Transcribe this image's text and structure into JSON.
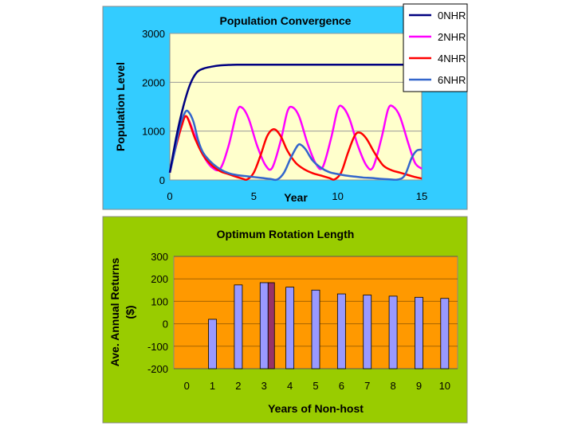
{
  "chart_data": [
    {
      "type": "line",
      "title": "Population Convergence",
      "xlabel": "Year",
      "ylabel": "Population Level",
      "xlim": [
        0,
        15
      ],
      "ylim": [
        0,
        3000
      ],
      "x_ticks": [
        "0",
        "5",
        "10",
        "15"
      ],
      "y_ticks": [
        "0",
        "1000",
        "2000",
        "3000"
      ],
      "legend_position": "top-right",
      "colors": {
        "panel_bg": "#33CCFF",
        "plot_bg": "#FFFFCC"
      },
      "series": [
        {
          "name": "0NHR",
          "color": "#000080",
          "points": [
            [
              0,
              150
            ],
            [
              0.4,
              900
            ],
            [
              0.8,
              1500
            ],
            [
              1.2,
              1950
            ],
            [
              1.6,
              2200
            ],
            [
              2,
              2280
            ],
            [
              2.5,
              2320
            ],
            [
              3,
              2345
            ],
            [
              3.5,
              2355
            ],
            [
              4,
              2360
            ],
            [
              6,
              2360
            ],
            [
              8,
              2360
            ],
            [
              10,
              2360
            ],
            [
              12,
              2360
            ],
            [
              14,
              2360
            ],
            [
              15,
              2360
            ]
          ]
        },
        {
          "name": "2NHR",
          "color": "#FF00FF",
          "points": [
            [
              0,
              150
            ],
            [
              0.3,
              600
            ],
            [
              0.7,
              1100
            ],
            [
              1,
              1300
            ],
            [
              1.5,
              900
            ],
            [
              2,
              500
            ],
            [
              2.5,
              260
            ],
            [
              3,
              230
            ],
            [
              3.5,
              700
            ],
            [
              4,
              1400
            ],
            [
              4.3,
              1480
            ],
            [
              4.7,
              1250
            ],
            [
              5.2,
              700
            ],
            [
              5.7,
              300
            ],
            [
              6.1,
              250
            ],
            [
              6.6,
              800
            ],
            [
              7,
              1400
            ],
            [
              7.3,
              1490
            ],
            [
              7.7,
              1300
            ],
            [
              8.2,
              750
            ],
            [
              8.7,
              330
            ],
            [
              9.1,
              260
            ],
            [
              9.6,
              850
            ],
            [
              10,
              1450
            ],
            [
              10.3,
              1490
            ],
            [
              10.7,
              1250
            ],
            [
              11.2,
              700
            ],
            [
              11.7,
              300
            ],
            [
              12.1,
              260
            ],
            [
              12.6,
              850
            ],
            [
              13,
              1450
            ],
            [
              13.3,
              1500
            ],
            [
              13.7,
              1300
            ],
            [
              14.2,
              750
            ],
            [
              14.6,
              350
            ],
            [
              15,
              230
            ]
          ]
        },
        {
          "name": "4NHR",
          "color": "#FF0000",
          "points": [
            [
              0,
              150
            ],
            [
              0.3,
              600
            ],
            [
              0.7,
              1100
            ],
            [
              1,
              1300
            ],
            [
              1.5,
              850
            ],
            [
              2,
              500
            ],
            [
              2.5,
              300
            ],
            [
              3,
              180
            ],
            [
              3.5,
              120
            ],
            [
              4,
              60
            ],
            [
              4.3,
              30
            ],
            [
              4.6,
              10
            ],
            [
              5,
              150
            ],
            [
              5.4,
              500
            ],
            [
              5.8,
              900
            ],
            [
              6.2,
              1040
            ],
            [
              6.6,
              900
            ],
            [
              7,
              600
            ],
            [
              7.5,
              350
            ],
            [
              8,
              220
            ],
            [
              8.5,
              140
            ],
            [
              9,
              90
            ],
            [
              9.5,
              40
            ],
            [
              9.8,
              10
            ],
            [
              10.2,
              150
            ],
            [
              10.6,
              550
            ],
            [
              11,
              900
            ],
            [
              11.3,
              970
            ],
            [
              11.7,
              850
            ],
            [
              12.2,
              550
            ],
            [
              12.7,
              300
            ],
            [
              13.2,
              200
            ],
            [
              13.7,
              150
            ],
            [
              14.2,
              100
            ],
            [
              14.6,
              60
            ],
            [
              15,
              30
            ]
          ]
        },
        {
          "name": "6NHR",
          "color": "#3366CC",
          "points": [
            [
              0,
              150
            ],
            [
              0.3,
              600
            ],
            [
              0.6,
              1100
            ],
            [
              0.9,
              1380
            ],
            [
              1.1,
              1400
            ],
            [
              1.4,
              1200
            ],
            [
              1.7,
              800
            ],
            [
              2,
              550
            ],
            [
              2.5,
              350
            ],
            [
              3,
              220
            ],
            [
              3.5,
              140
            ],
            [
              4,
              100
            ],
            [
              4.5,
              80
            ],
            [
              5,
              60
            ],
            [
              5.5,
              40
            ],
            [
              6,
              20
            ],
            [
              6.4,
              10
            ],
            [
              6.8,
              150
            ],
            [
              7.2,
              450
            ],
            [
              7.6,
              700
            ],
            [
              7.8,
              720
            ],
            [
              8.1,
              620
            ],
            [
              8.5,
              400
            ],
            [
              9,
              250
            ],
            [
              9.5,
              160
            ],
            [
              10,
              120
            ],
            [
              10.5,
              90
            ],
            [
              11,
              70
            ],
            [
              11.5,
              50
            ],
            [
              12,
              40
            ],
            [
              12.5,
              25
            ],
            [
              13,
              15
            ],
            [
              13.6,
              10
            ],
            [
              14,
              100
            ],
            [
              14.4,
              450
            ],
            [
              14.7,
              600
            ],
            [
              15,
              620
            ]
          ]
        }
      ]
    },
    {
      "type": "bar",
      "title": "Optimum Rotation Length",
      "xlabel": "Years of Non-host",
      "ylabel": "Ave. Annual Returns ($)",
      "ylim": [
        -200,
        300
      ],
      "y_ticks": [
        "-200",
        "-100",
        "0",
        "100",
        "200",
        "300"
      ],
      "categories": [
        "0",
        "1",
        "2",
        "3",
        "4",
        "5",
        "6",
        "7",
        "8",
        "9",
        "10"
      ],
      "values": [
        null,
        20,
        173,
        183,
        163,
        150,
        133,
        128,
        123,
        118,
        113
      ],
      "highlight_index": 3,
      "colors": {
        "panel_bg": "#99CC00",
        "plot_bg": "#FF9900",
        "bar": "#9999FF",
        "highlight_bar": "#993366"
      }
    }
  ]
}
